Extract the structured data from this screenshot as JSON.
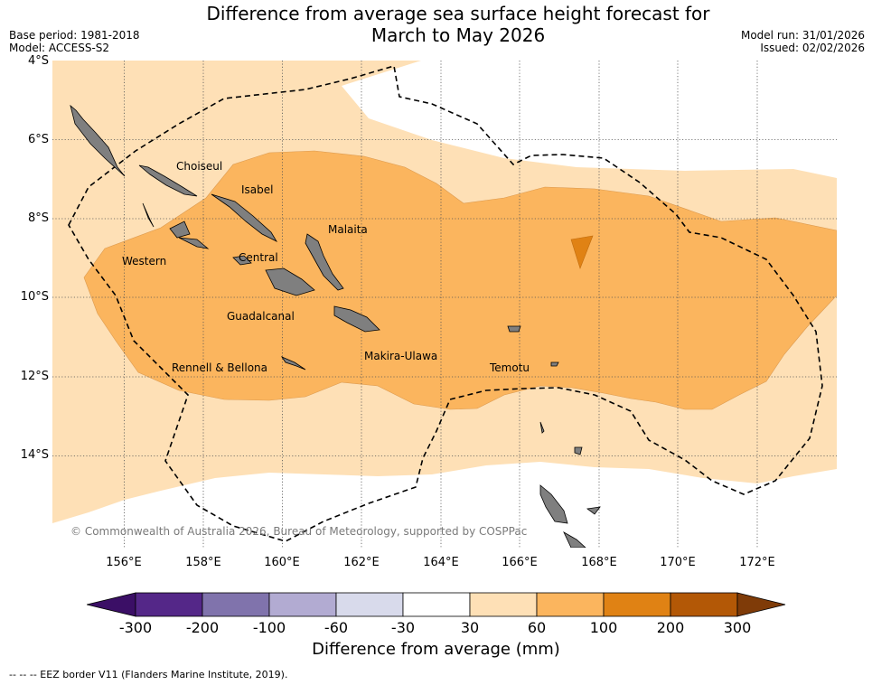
{
  "title": {
    "line1": "Difference from average sea surface height forecast for",
    "line2": "March to May 2026"
  },
  "meta": {
    "base_period": "Base period: 1981-2018",
    "model": "Model: ACCESS-S2",
    "model_run": "Model run: 31/01/2026",
    "issued": "Issued: 02/02/2026"
  },
  "axes": {
    "lat_labels": [
      "4°S",
      "6°S",
      "8°S",
      "10°S",
      "12°S",
      "14°S"
    ],
    "lon_labels": [
      "156°E",
      "158°E",
      "160°E",
      "162°E",
      "164°E",
      "166°E",
      "168°E",
      "170°E",
      "172°E"
    ],
    "lat_range": [
      -15.9,
      -4.0
    ],
    "lon_range": [
      154.2,
      174.1
    ]
  },
  "provinces": [
    {
      "name": "Choiseul"
    },
    {
      "name": "Isabel"
    },
    {
      "name": "Malaita"
    },
    {
      "name": "Western"
    },
    {
      "name": "Central"
    },
    {
      "name": "Guadalcanal"
    },
    {
      "name": "Rennell & Bellona"
    },
    {
      "name": "Makira-Ulawa"
    },
    {
      "name": "Temotu"
    }
  ],
  "copyright": "© Commonwealth of Australia 2026, Bureau of Meteorology, supported by COSPPac",
  "colorbar": {
    "label": "Difference from average (mm)",
    "ticks": [
      "-300",
      "-200",
      "-100",
      "-60",
      "-30",
      "30",
      "60",
      "100",
      "200",
      "300"
    ],
    "colors": [
      "#3b0f66",
      "#542788",
      "#8073ac",
      "#b2abd2",
      "#d8daeb",
      "#ffffff",
      "#fee0b6",
      "#fbb55e",
      "#e08214",
      "#b35806",
      "#7f3b08"
    ]
  },
  "legend": {
    "eez": "--  --  -- EEZ border V11 (Flanders Marine Institute, 2019)."
  }
}
